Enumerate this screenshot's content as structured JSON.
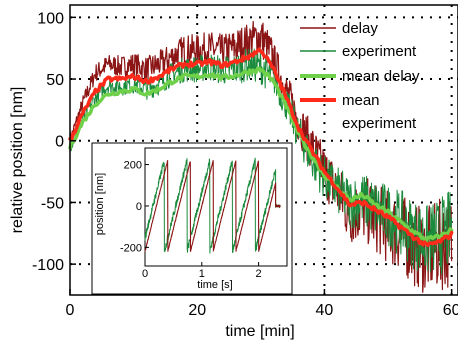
{
  "chart_data": [
    {
      "type": "line",
      "xlabel": "time [min]",
      "ylabel": "relative position [nm]",
      "xlim": [
        0,
        61
      ],
      "ylim": [
        -125,
        110
      ],
      "x_ticks": [
        0,
        20,
        40,
        60
      ],
      "y_ticks": [
        100,
        50,
        0,
        -50,
        -100
      ],
      "x_tick_labels": [
        "0",
        "20",
        "40",
        "60"
      ],
      "y_tick_labels": [
        "100",
        "50",
        "0",
        "-50",
        "-100"
      ],
      "grid": "dotted",
      "legend_position": "top-right",
      "series": [
        {
          "name": "delay",
          "color": "#8b1414",
          "style": "noisy band (raw data)",
          "x": [
            0,
            2,
            4,
            6,
            8,
            10,
            12,
            14,
            16,
            18,
            20,
            22,
            24,
            26,
            28,
            30,
            32,
            34,
            36,
            38,
            40,
            42,
            44,
            46,
            48,
            50,
            52,
            54,
            56,
            58,
            60
          ],
          "values": [
            0,
            30,
            55,
            62,
            60,
            62,
            58,
            62,
            68,
            74,
            73,
            75,
            72,
            76,
            80,
            85,
            66,
            40,
            15,
            -5,
            -25,
            -40,
            -60,
            -55,
            -62,
            -70,
            -75,
            -84,
            -90,
            -85,
            -80
          ]
        },
        {
          "name": "experiment",
          "color": "#1a8a3c",
          "style": "noisy band (raw data)",
          "x": [
            0,
            2,
            4,
            6,
            8,
            10,
            12,
            14,
            16,
            18,
            20,
            22,
            24,
            26,
            28,
            30,
            32,
            34,
            36,
            38,
            40,
            42,
            44,
            46,
            48,
            50,
            52,
            54,
            56,
            58,
            60
          ],
          "values": [
            -5,
            18,
            35,
            45,
            44,
            46,
            42,
            46,
            54,
            58,
            58,
            60,
            57,
            58,
            62,
            60,
            50,
            30,
            5,
            -15,
            -30,
            -40,
            -50,
            -48,
            -55,
            -60,
            -67,
            -75,
            -82,
            -78,
            -72
          ]
        },
        {
          "name": "mean delay",
          "color": "#6fd04a",
          "x": [
            0,
            2,
            4,
            6,
            8,
            10,
            12,
            14,
            16,
            18,
            20,
            22,
            24,
            26,
            28,
            30,
            32,
            34,
            36,
            38,
            40,
            42,
            44,
            46,
            48,
            50,
            52,
            54,
            56,
            58,
            60
          ],
          "values": [
            -5,
            15,
            30,
            38,
            40,
            42,
            38,
            42,
            48,
            52,
            52,
            54,
            51,
            53,
            56,
            58,
            48,
            28,
            5,
            -12,
            -28,
            -38,
            -48,
            -44,
            -52,
            -58,
            -66,
            -74,
            -80,
            -78,
            -72
          ]
        },
        {
          "name": "mean experiment",
          "color": "#ff2a1a",
          "x": [
            0,
            2,
            4,
            6,
            8,
            10,
            12,
            14,
            16,
            18,
            20,
            22,
            24,
            26,
            28,
            30,
            32,
            34,
            36,
            38,
            40,
            42,
            44,
            46,
            48,
            50,
            52,
            54,
            56,
            58,
            60
          ],
          "values": [
            0,
            22,
            40,
            50,
            50,
            52,
            48,
            52,
            58,
            62,
            62,
            64,
            61,
            64,
            68,
            74,
            58,
            35,
            10,
            -8,
            -25,
            -38,
            -52,
            -50,
            -56,
            -62,
            -70,
            -78,
            -85,
            -82,
            -76
          ]
        }
      ]
    },
    {
      "type": "line",
      "role": "inset",
      "xlabel": "time [s]",
      "ylabel": "position [nm]",
      "xlim": [
        0,
        2.5
      ],
      "ylim": [
        -290,
        280
      ],
      "x_ticks": [
        0,
        1,
        2
      ],
      "y_ticks": [
        200,
        0,
        -200
      ],
      "x_tick_labels": [
        "0",
        "1",
        "2"
      ],
      "y_tick_labels": [
        "200",
        "0",
        "-200"
      ],
      "series": [
        {
          "name": "delay",
          "color": "#8b1414",
          "shape": "sawtooth",
          "period_s": 0.4,
          "amplitude_nm": 220,
          "x_range": [
            0,
            2.3
          ]
        },
        {
          "name": "experiment",
          "color": "#1a8a3c",
          "shape": "sawtooth",
          "period_s": 0.4,
          "amplitude_nm": 220,
          "x_range": [
            0,
            2.3
          ]
        }
      ]
    }
  ]
}
